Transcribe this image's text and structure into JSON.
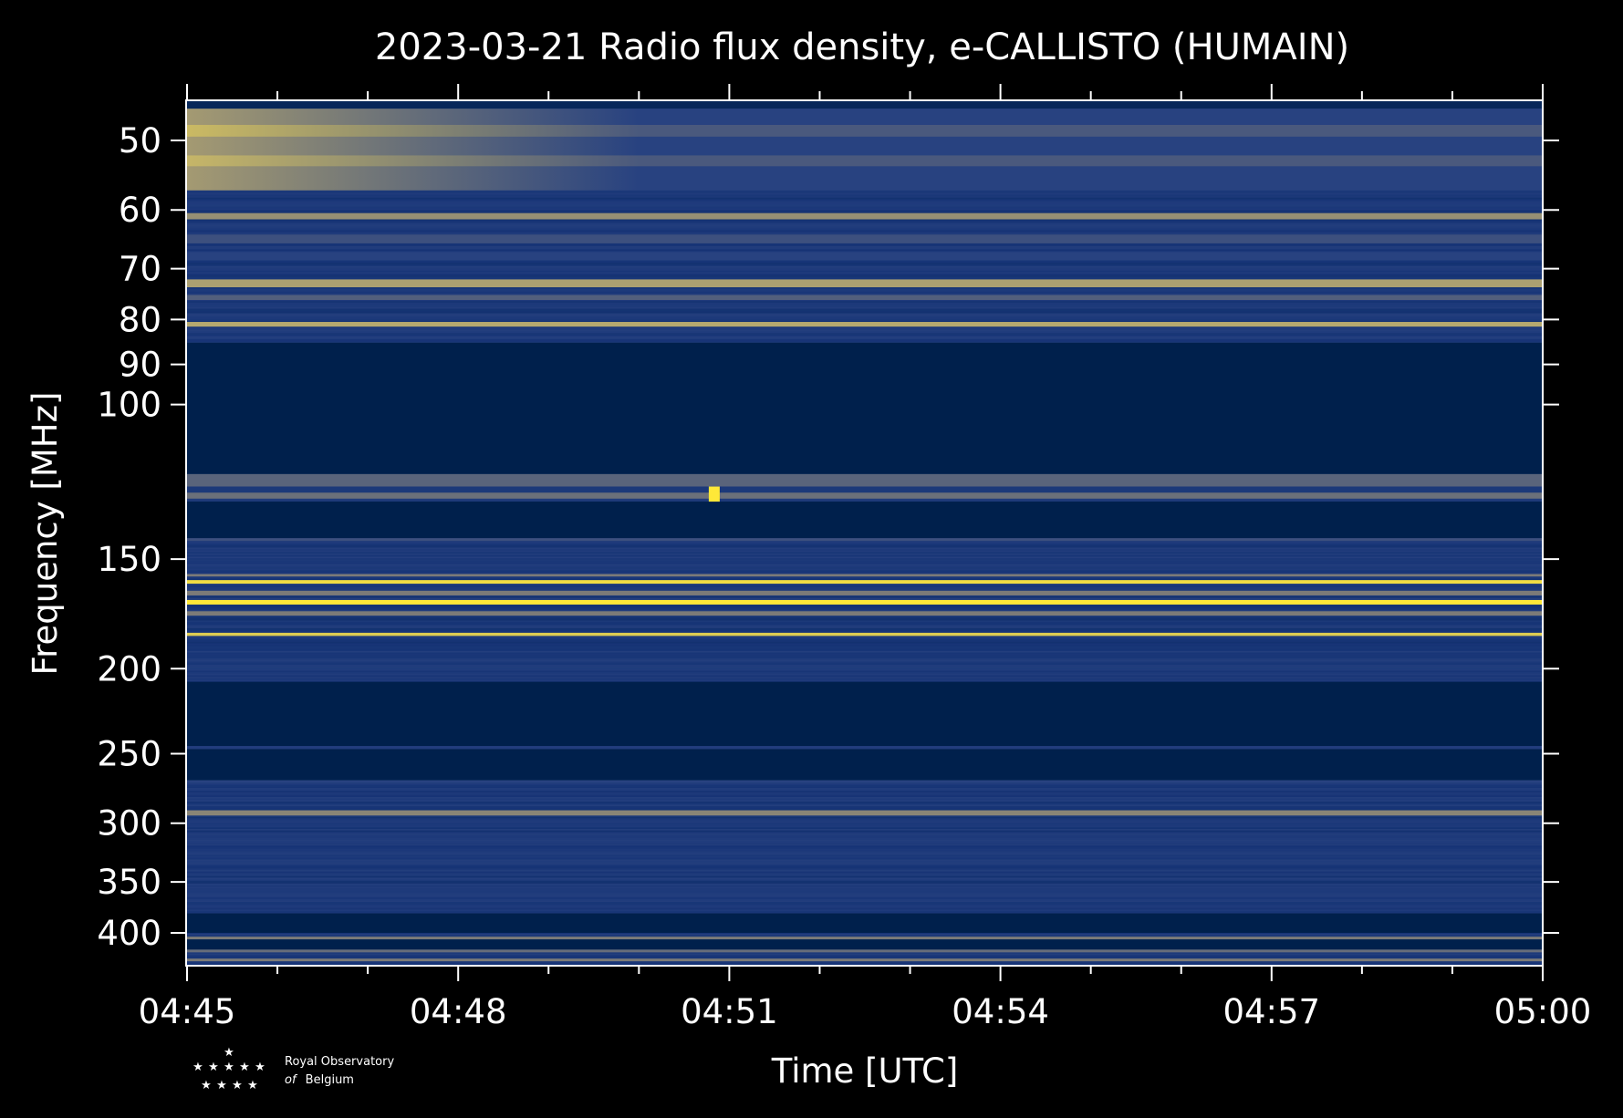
{
  "chart_data": {
    "type": "heatmap",
    "title": "2023-03-21 Radio flux density, e-CALLISTO (HUMAIN)",
    "xlabel": "Time [UTC]",
    "ylabel": "Frequency [MHz]",
    "x_ticks": [
      "04:45",
      "04:48",
      "04:51",
      "04:54",
      "04:57",
      "05:00"
    ],
    "y_ticks": [
      "50",
      "60",
      "70",
      "80",
      "90",
      "100",
      "150",
      "200",
      "250",
      "300",
      "350",
      "400"
    ],
    "y_tick_values": [
      50,
      60,
      70,
      80,
      90,
      100,
      150,
      200,
      250,
      300,
      350,
      400
    ],
    "xlim": [
      "04:45",
      "05:00"
    ],
    "ylim": [
      45,
      435
    ],
    "y_scale": "log",
    "y_inverted": true,
    "colormap": "cividis",
    "colors": {
      "background": "#000000",
      "no_signal": "#00204c",
      "low": "#1c3d80",
      "mid": "#7c7b78",
      "high": "#fee838"
    },
    "bands": [
      {
        "f_start": 45,
        "f_end": 46,
        "level": 0.05
      },
      {
        "f_start": 46,
        "f_end": 57,
        "level": 0.3,
        "early_level": 0.65,
        "fade_end": "04:50"
      },
      {
        "f_start": 48,
        "f_end": 49.5,
        "level": 0.38,
        "early_level": 0.8,
        "fade_end": "04:50"
      },
      {
        "f_start": 52,
        "f_end": 53.5,
        "level": 0.38,
        "early_level": 0.78,
        "fade_end": "04:50"
      },
      {
        "f_start": 60.5,
        "f_end": 61.5,
        "level": 0.6
      },
      {
        "f_start": 64,
        "f_end": 65.5,
        "level": 0.35
      },
      {
        "f_start": 67,
        "f_end": 68.5,
        "level": 0.3
      },
      {
        "f_start": 72,
        "f_end": 73.5,
        "level": 0.68
      },
      {
        "f_start": 75,
        "f_end": 76,
        "level": 0.4
      },
      {
        "f_start": 80.5,
        "f_end": 81.5,
        "level": 0.72
      },
      {
        "f_start": 85,
        "f_end": 120,
        "level": 0.0
      },
      {
        "f_start": 120,
        "f_end": 124,
        "level": 0.42
      },
      {
        "f_start": 124,
        "f_end": 126,
        "level": 0.2
      },
      {
        "f_start": 126,
        "f_end": 128,
        "level": 0.46
      },
      {
        "f_start": 129,
        "f_end": 142,
        "level": 0.0
      },
      {
        "f_start": 142,
        "f_end": 143,
        "level": 0.35
      },
      {
        "f_start": 156,
        "f_end": 157,
        "level": 0.5
      },
      {
        "f_start": 158.5,
        "f_end": 160,
        "level": 0.95
      },
      {
        "f_start": 163,
        "f_end": 165,
        "level": 0.5
      },
      {
        "f_start": 167,
        "f_end": 169,
        "level": 1.0
      },
      {
        "f_start": 172,
        "f_end": 174,
        "level": 0.5
      },
      {
        "f_start": 182,
        "f_end": 183.5,
        "level": 0.88
      },
      {
        "f_start": 207,
        "f_end": 245,
        "level": 0.0
      },
      {
        "f_start": 245,
        "f_end": 247,
        "level": 0.25
      },
      {
        "f_start": 247,
        "f_end": 268,
        "level": 0.0
      },
      {
        "f_start": 268,
        "f_end": 270,
        "level": 0.3
      },
      {
        "f_start": 290,
        "f_end": 294,
        "level": 0.55
      },
      {
        "f_start": 380,
        "f_end": 400,
        "level": 0.0
      },
      {
        "f_start": 404,
        "f_end": 407,
        "level": 0.5
      },
      {
        "f_start": 407,
        "f_end": 418,
        "level": 0.0
      },
      {
        "f_start": 418,
        "f_end": 421,
        "level": 0.45
      },
      {
        "f_start": 428,
        "f_end": 431,
        "level": 0.5
      }
    ],
    "bursts": [
      {
        "time": "04:50:50",
        "f_start": 124,
        "f_end": 129,
        "level": 1.0
      }
    ]
  },
  "logo": {
    "line1": "Royal Observatory",
    "line2_italic": "of",
    "line2": "Belgium"
  }
}
